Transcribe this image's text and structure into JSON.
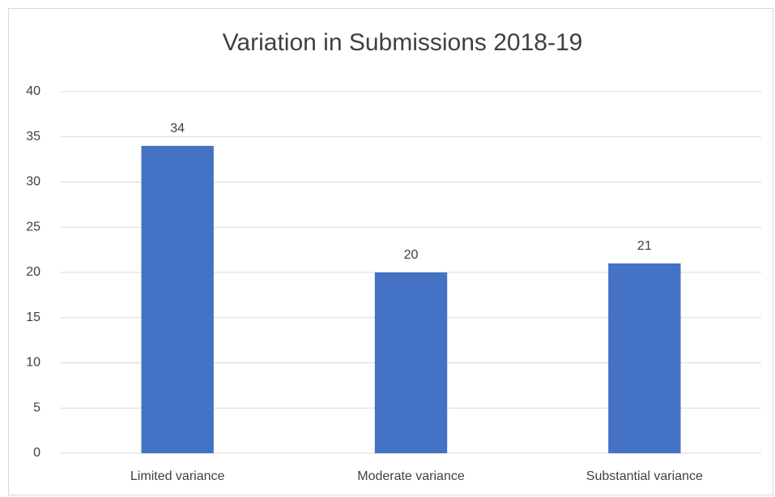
{
  "chart_data": {
    "type": "bar",
    "title": "Variation in Submissions 2018-19",
    "categories": [
      "Limited variance",
      "Moderate variance",
      "Substantial variance"
    ],
    "values": [
      34,
      20,
      21
    ],
    "color": "#4472c4",
    "ylim": [
      0,
      40
    ],
    "yticks": [
      0,
      5,
      10,
      15,
      20,
      25,
      30,
      35,
      40
    ],
    "grid": true
  }
}
